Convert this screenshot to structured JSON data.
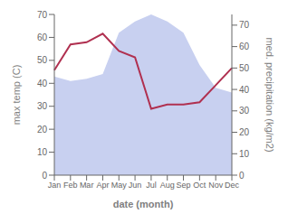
{
  "chart_data": {
    "type": "line",
    "categories": [
      "Jan",
      "Feb",
      "Mar",
      "Apr",
      "May",
      "Jun",
      "Jul",
      "Aug",
      "Sep",
      "Oct",
      "Nov",
      "Dec"
    ],
    "series": [
      {
        "type": "area",
        "color": "#c8d0f0",
        "values": [
          43,
          41,
          42,
          44,
          62,
          67,
          70,
          67,
          62,
          48,
          38,
          36
        ]
      },
      {
        "type": "line",
        "color": "#b03050",
        "axis": "y2",
        "values": [
          49,
          61,
          62,
          66,
          58,
          55,
          31,
          33,
          33,
          34,
          42,
          50
        ]
      }
    ],
    "xlabel": "date (month)",
    "ylabel": "max temp (C)",
    "y2label": "med. precipitation (kg/m2)",
    "ylim": [
      0,
      70
    ],
    "yticks": [
      0,
      10,
      20,
      30,
      40,
      50,
      60,
      70
    ],
    "y2lim": [
      0,
      75
    ],
    "y2ticks": [
      0,
      10,
      20,
      30,
      40,
      50,
      60,
      70
    ],
    "grid": false
  }
}
